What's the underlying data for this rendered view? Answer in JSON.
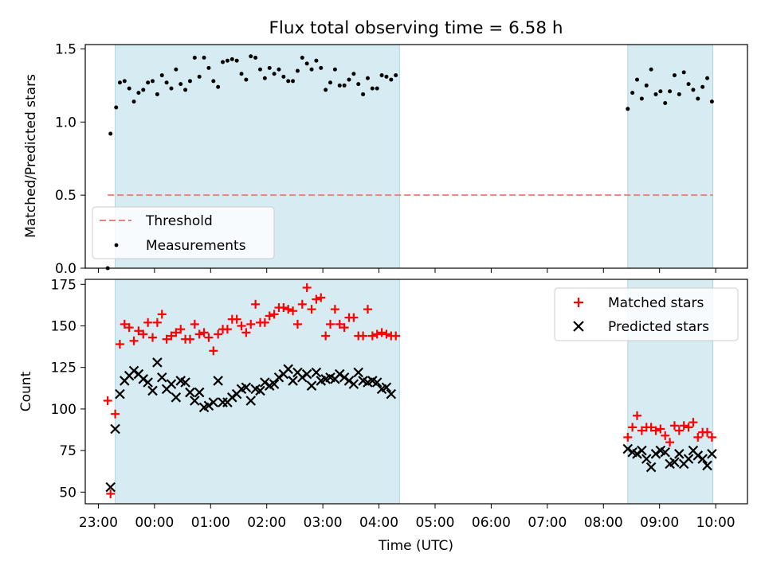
{
  "chart_data": [
    {
      "type": "scatter",
      "title": "Flux total observing time = 6.58 h",
      "xlabel": "",
      "ylabel": "Matched/Predicted stars",
      "xlim": [
        "22:46",
        "10:34"
      ],
      "ylim": [
        0,
        1.53
      ],
      "y_ticks": [
        "0.0",
        "0.5",
        "1.0",
        "1.5"
      ],
      "observing_windows": [
        [
          "23:18",
          "04:22"
        ],
        [
          "08:26",
          "09:57"
        ]
      ],
      "threshold": {
        "label": "Threshold",
        "value": 0.5,
        "x_range": [
          "23:10",
          "09:57"
        ],
        "color": "#f08080"
      },
      "legend": {
        "position": "lower-left",
        "entries": [
          "Threshold",
          "Measurements"
        ]
      },
      "series": [
        {
          "name": "Measurements",
          "color": "#000000",
          "points": [
            [
              "23:10",
              0.0
            ],
            [
              "23:13",
              0.92
            ],
            [
              "23:19",
              1.1
            ],
            [
              "23:23",
              1.27
            ],
            [
              "23:28",
              1.28
            ],
            [
              "23:33",
              1.23
            ],
            [
              "23:38",
              1.14
            ],
            [
              "23:43",
              1.2
            ],
            [
              "23:48",
              1.22
            ],
            [
              "23:53",
              1.27
            ],
            [
              "23:58",
              1.28
            ],
            [
              "00:03",
              1.19
            ],
            [
              "00:08",
              1.32
            ],
            [
              "00:13",
              1.27
            ],
            [
              "00:18",
              1.23
            ],
            [
              "00:23",
              1.36
            ],
            [
              "00:28",
              1.26
            ],
            [
              "00:33",
              1.22
            ],
            [
              "00:38",
              1.28
            ],
            [
              "00:43",
              1.44
            ],
            [
              "00:48",
              1.31
            ],
            [
              "00:53",
              1.44
            ],
            [
              "00:58",
              1.37
            ],
            [
              "01:03",
              1.28
            ],
            [
              "01:08",
              1.24
            ],
            [
              "01:13",
              1.41
            ],
            [
              "01:18",
              1.42
            ],
            [
              "01:23",
              1.43
            ],
            [
              "01:28",
              1.42
            ],
            [
              "01:33",
              1.33
            ],
            [
              "01:38",
              1.29
            ],
            [
              "01:43",
              1.45
            ],
            [
              "01:48",
              1.44
            ],
            [
              "01:53",
              1.36
            ],
            [
              "01:58",
              1.3
            ],
            [
              "02:03",
              1.37
            ],
            [
              "02:08",
              1.33
            ],
            [
              "02:13",
              1.36
            ],
            [
              "02:18",
              1.31
            ],
            [
              "02:23",
              1.28
            ],
            [
              "02:28",
              1.28
            ],
            [
              "02:33",
              1.35
            ],
            [
              "02:38",
              1.44
            ],
            [
              "02:43",
              1.4
            ],
            [
              "02:48",
              1.36
            ],
            [
              "02:53",
              1.42
            ],
            [
              "02:58",
              1.37
            ],
            [
              "03:03",
              1.22
            ],
            [
              "03:08",
              1.27
            ],
            [
              "03:13",
              1.36
            ],
            [
              "03:18",
              1.25
            ],
            [
              "03:23",
              1.25
            ],
            [
              "03:28",
              1.29
            ],
            [
              "03:33",
              1.33
            ],
            [
              "03:38",
              1.26
            ],
            [
              "03:43",
              1.19
            ],
            [
              "03:48",
              1.3
            ],
            [
              "03:53",
              1.23
            ],
            [
              "03:58",
              1.23
            ],
            [
              "04:03",
              1.32
            ],
            [
              "04:08",
              1.31
            ],
            [
              "04:13",
              1.29
            ],
            [
              "04:18",
              1.32
            ],
            [
              "08:26",
              1.09
            ],
            [
              "08:31",
              1.2
            ],
            [
              "08:36",
              1.29
            ],
            [
              "08:41",
              1.16
            ],
            [
              "08:46",
              1.25
            ],
            [
              "08:51",
              1.36
            ],
            [
              "08:56",
              1.19
            ],
            [
              "09:01",
              1.21
            ],
            [
              "09:06",
              1.13
            ],
            [
              "09:11",
              1.21
            ],
            [
              "09:16",
              1.32
            ],
            [
              "09:21",
              1.19
            ],
            [
              "09:26",
              1.34
            ],
            [
              "09:31",
              1.26
            ],
            [
              "09:36",
              1.22
            ],
            [
              "09:41",
              1.16
            ],
            [
              "09:46",
              1.24
            ],
            [
              "09:51",
              1.3
            ],
            [
              "09:56",
              1.14
            ]
          ]
        }
      ]
    },
    {
      "type": "scatter",
      "title": "",
      "xlabel": "Time (UTC)",
      "ylabel": "Count",
      "xlim": [
        "22:46",
        "10:34"
      ],
      "ylim": [
        43,
        178
      ],
      "y_ticks": [
        "50",
        "75",
        "100",
        "125",
        "150",
        "175"
      ],
      "x_ticks": [
        "23:00",
        "00:00",
        "01:00",
        "02:00",
        "03:00",
        "04:00",
        "05:00",
        "06:00",
        "07:00",
        "08:00",
        "09:00",
        "10:00"
      ],
      "observing_windows": [
        [
          "23:18",
          "04:22"
        ],
        [
          "08:26",
          "09:57"
        ]
      ],
      "legend": {
        "position": "upper-right",
        "entries": [
          "Matched stars",
          "Predicted stars"
        ]
      },
      "series": [
        {
          "name": "Matched stars",
          "marker": "plus",
          "color": "#ff0000",
          "points": [
            [
              "23:10",
              105
            ],
            [
              "23:13",
              49
            ],
            [
              "23:18",
              97
            ],
            [
              "23:23",
              139
            ],
            [
              "23:28",
              151
            ],
            [
              "23:33",
              149
            ],
            [
              "23:38",
              141
            ],
            [
              "23:43",
              147
            ],
            [
              "23:48",
              145
            ],
            [
              "23:53",
              152
            ],
            [
              "23:58",
              143
            ],
            [
              "00:03",
              152
            ],
            [
              "00:08",
              157
            ],
            [
              "00:13",
              142
            ],
            [
              "00:18",
              144
            ],
            [
              "00:23",
              146
            ],
            [
              "00:28",
              148
            ],
            [
              "00:33",
              142
            ],
            [
              "00:38",
              142
            ],
            [
              "00:43",
              151
            ],
            [
              "00:48",
              145
            ],
            [
              "00:53",
              146
            ],
            [
              "00:58",
              143
            ],
            [
              "01:03",
              135
            ],
            [
              "01:08",
              145
            ],
            [
              "01:13",
              148
            ],
            [
              "01:18",
              148
            ],
            [
              "01:23",
              154
            ],
            [
              "01:28",
              154
            ],
            [
              "01:33",
              150
            ],
            [
              "01:38",
              146
            ],
            [
              "01:43",
              151
            ],
            [
              "01:48",
              163
            ],
            [
              "01:53",
              152
            ],
            [
              "01:58",
              152
            ],
            [
              "02:03",
              156
            ],
            [
              "02:08",
              157
            ],
            [
              "02:13",
              161
            ],
            [
              "02:18",
              161
            ],
            [
              "02:23",
              160
            ],
            [
              "02:28",
              159
            ],
            [
              "02:33",
              151
            ],
            [
              "02:38",
              163
            ],
            [
              "02:43",
              173
            ],
            [
              "02:48",
              160
            ],
            [
              "02:53",
              166
            ],
            [
              "02:58",
              167
            ],
            [
              "03:03",
              144
            ],
            [
              "03:08",
              151
            ],
            [
              "03:13",
              160
            ],
            [
              "03:18",
              151
            ],
            [
              "03:23",
              149
            ],
            [
              "03:28",
              155
            ],
            [
              "03:33",
              155
            ],
            [
              "03:38",
              144
            ],
            [
              "03:43",
              144
            ],
            [
              "03:48",
              160
            ],
            [
              "03:53",
              144
            ],
            [
              "03:58",
              145
            ],
            [
              "04:03",
              146
            ],
            [
              "04:08",
              145
            ],
            [
              "04:13",
              144
            ],
            [
              "04:18",
              144
            ],
            [
              "08:26",
              83
            ],
            [
              "08:31",
              89
            ],
            [
              "08:36",
              96
            ],
            [
              "08:41",
              87
            ],
            [
              "08:46",
              89
            ],
            [
              "08:51",
              89
            ],
            [
              "08:56",
              87
            ],
            [
              "09:01",
              88
            ],
            [
              "09:06",
              84
            ],
            [
              "09:11",
              80
            ],
            [
              "09:16",
              90
            ],
            [
              "09:21",
              87
            ],
            [
              "09:26",
              90
            ],
            [
              "09:31",
              89
            ],
            [
              "09:36",
              92
            ],
            [
              "09:41",
              83
            ],
            [
              "09:46",
              86
            ],
            [
              "09:51",
              86
            ],
            [
              "09:56",
              83
            ]
          ]
        },
        {
          "name": "Predicted stars",
          "marker": "x",
          "color": "#000000",
          "points": [
            [
              "23:13",
              53
            ],
            [
              "23:18",
              88
            ],
            [
              "23:23",
              109
            ],
            [
              "23:28",
              117
            ],
            [
              "23:33",
              120
            ],
            [
              "23:38",
              123
            ],
            [
              "23:43",
              121
            ],
            [
              "23:48",
              118
            ],
            [
              "23:53",
              116
            ],
            [
              "23:58",
              111
            ],
            [
              "00:03",
              128
            ],
            [
              "00:08",
              119
            ],
            [
              "00:13",
              112
            ],
            [
              "00:18",
              115
            ],
            [
              "00:23",
              107
            ],
            [
              "00:28",
              117
            ],
            [
              "00:33",
              116
            ],
            [
              "00:38",
              110
            ],
            [
              "00:43",
              105
            ],
            [
              "00:48",
              110
            ],
            [
              "00:53",
              101
            ],
            [
              "00:58",
              102
            ],
            [
              "01:03",
              104
            ],
            [
              "01:08",
              117
            ],
            [
              "01:13",
              104
            ],
            [
              "01:18",
              104
            ],
            [
              "01:23",
              107
            ],
            [
              "01:28",
              109
            ],
            [
              "01:33",
              112
            ],
            [
              "01:38",
              113
            ],
            [
              "01:43",
              105
            ],
            [
              "01:48",
              112
            ],
            [
              "01:53",
              111
            ],
            [
              "01:58",
              116
            ],
            [
              "02:03",
              114
            ],
            [
              "02:08",
              115
            ],
            [
              "02:13",
              119
            ],
            [
              "02:18",
              121
            ],
            [
              "02:23",
              124
            ],
            [
              "02:28",
              117
            ],
            [
              "02:33",
              122
            ],
            [
              "02:38",
              119
            ],
            [
              "02:43",
              121
            ],
            [
              "02:48",
              114
            ],
            [
              "02:53",
              122
            ],
            [
              "02:58",
              117
            ],
            [
              "03:03",
              118
            ],
            [
              "03:08",
              119
            ],
            [
              "03:13",
              118
            ],
            [
              "03:18",
              121
            ],
            [
              "03:23",
              119
            ],
            [
              "03:28",
              117
            ],
            [
              "03:33",
              115
            ],
            [
              "03:38",
              122
            ],
            [
              "03:43",
              117
            ],
            [
              "03:48",
              116
            ],
            [
              "03:53",
              117
            ],
            [
              "03:58",
              116
            ],
            [
              "04:03",
              112
            ],
            [
              "04:08",
              113
            ],
            [
              "04:13",
              109
            ],
            [
              "08:26",
              76
            ],
            [
              "08:31",
              74
            ],
            [
              "08:36",
              73
            ],
            [
              "08:41",
              75
            ],
            [
              "08:46",
              70
            ],
            [
              "08:51",
              65
            ],
            [
              "08:56",
              73
            ],
            [
              "09:01",
              75
            ],
            [
              "09:06",
              74
            ],
            [
              "09:11",
              67
            ],
            [
              "09:16",
              68
            ],
            [
              "09:21",
              73
            ],
            [
              "09:26",
              67
            ],
            [
              "09:31",
              70
            ],
            [
              "09:36",
              75
            ],
            [
              "09:41",
              72
            ],
            [
              "09:46",
              70
            ],
            [
              "09:51",
              66
            ],
            [
              "09:56",
              73
            ]
          ]
        }
      ]
    }
  ],
  "colors": {
    "window_fill": "#add8e6",
    "threshold": "#f08080",
    "matched": "#ff0000",
    "predicted": "#000000"
  }
}
